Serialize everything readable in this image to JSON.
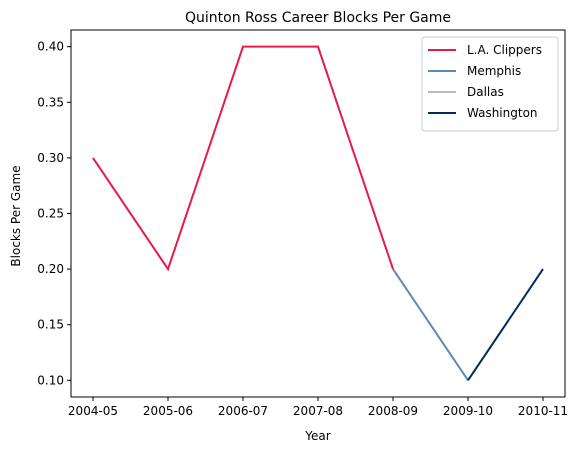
{
  "chart_data": {
    "type": "line",
    "title": "Quinton Ross Career Blocks Per Game",
    "xlabel": "Year",
    "ylabel": "Blocks Per Game",
    "categories": [
      "2004-05",
      "2005-06",
      "2006-07",
      "2007-08",
      "2008-09",
      "2009-10",
      "2010-11"
    ],
    "yticks": [
      "0.10",
      "0.15",
      "0.20",
      "0.25",
      "0.30",
      "0.35",
      "0.40"
    ],
    "ylim": [
      0.085,
      0.415
    ],
    "grid": false,
    "legend_position": "top-right",
    "series": [
      {
        "name": "L.A. Clippers",
        "color": "#E8194B",
        "x": [
          "2004-05",
          "2005-06",
          "2006-07",
          "2007-08",
          "2008-09"
        ],
        "values": [
          0.3,
          0.2,
          0.4,
          0.4,
          0.2
        ]
      },
      {
        "name": "Memphis",
        "color": "#5D8BB8",
        "x": [
          "2008-09",
          "2009-10"
        ],
        "values": [
          0.2,
          0.1
        ]
      },
      {
        "name": "Dallas",
        "color": "#BBBBBB",
        "x": [],
        "values": []
      },
      {
        "name": "Washington",
        "color": "#002B5C",
        "x": [
          "2009-10",
          "2010-11"
        ],
        "values": [
          0.1,
          0.2
        ]
      }
    ]
  }
}
